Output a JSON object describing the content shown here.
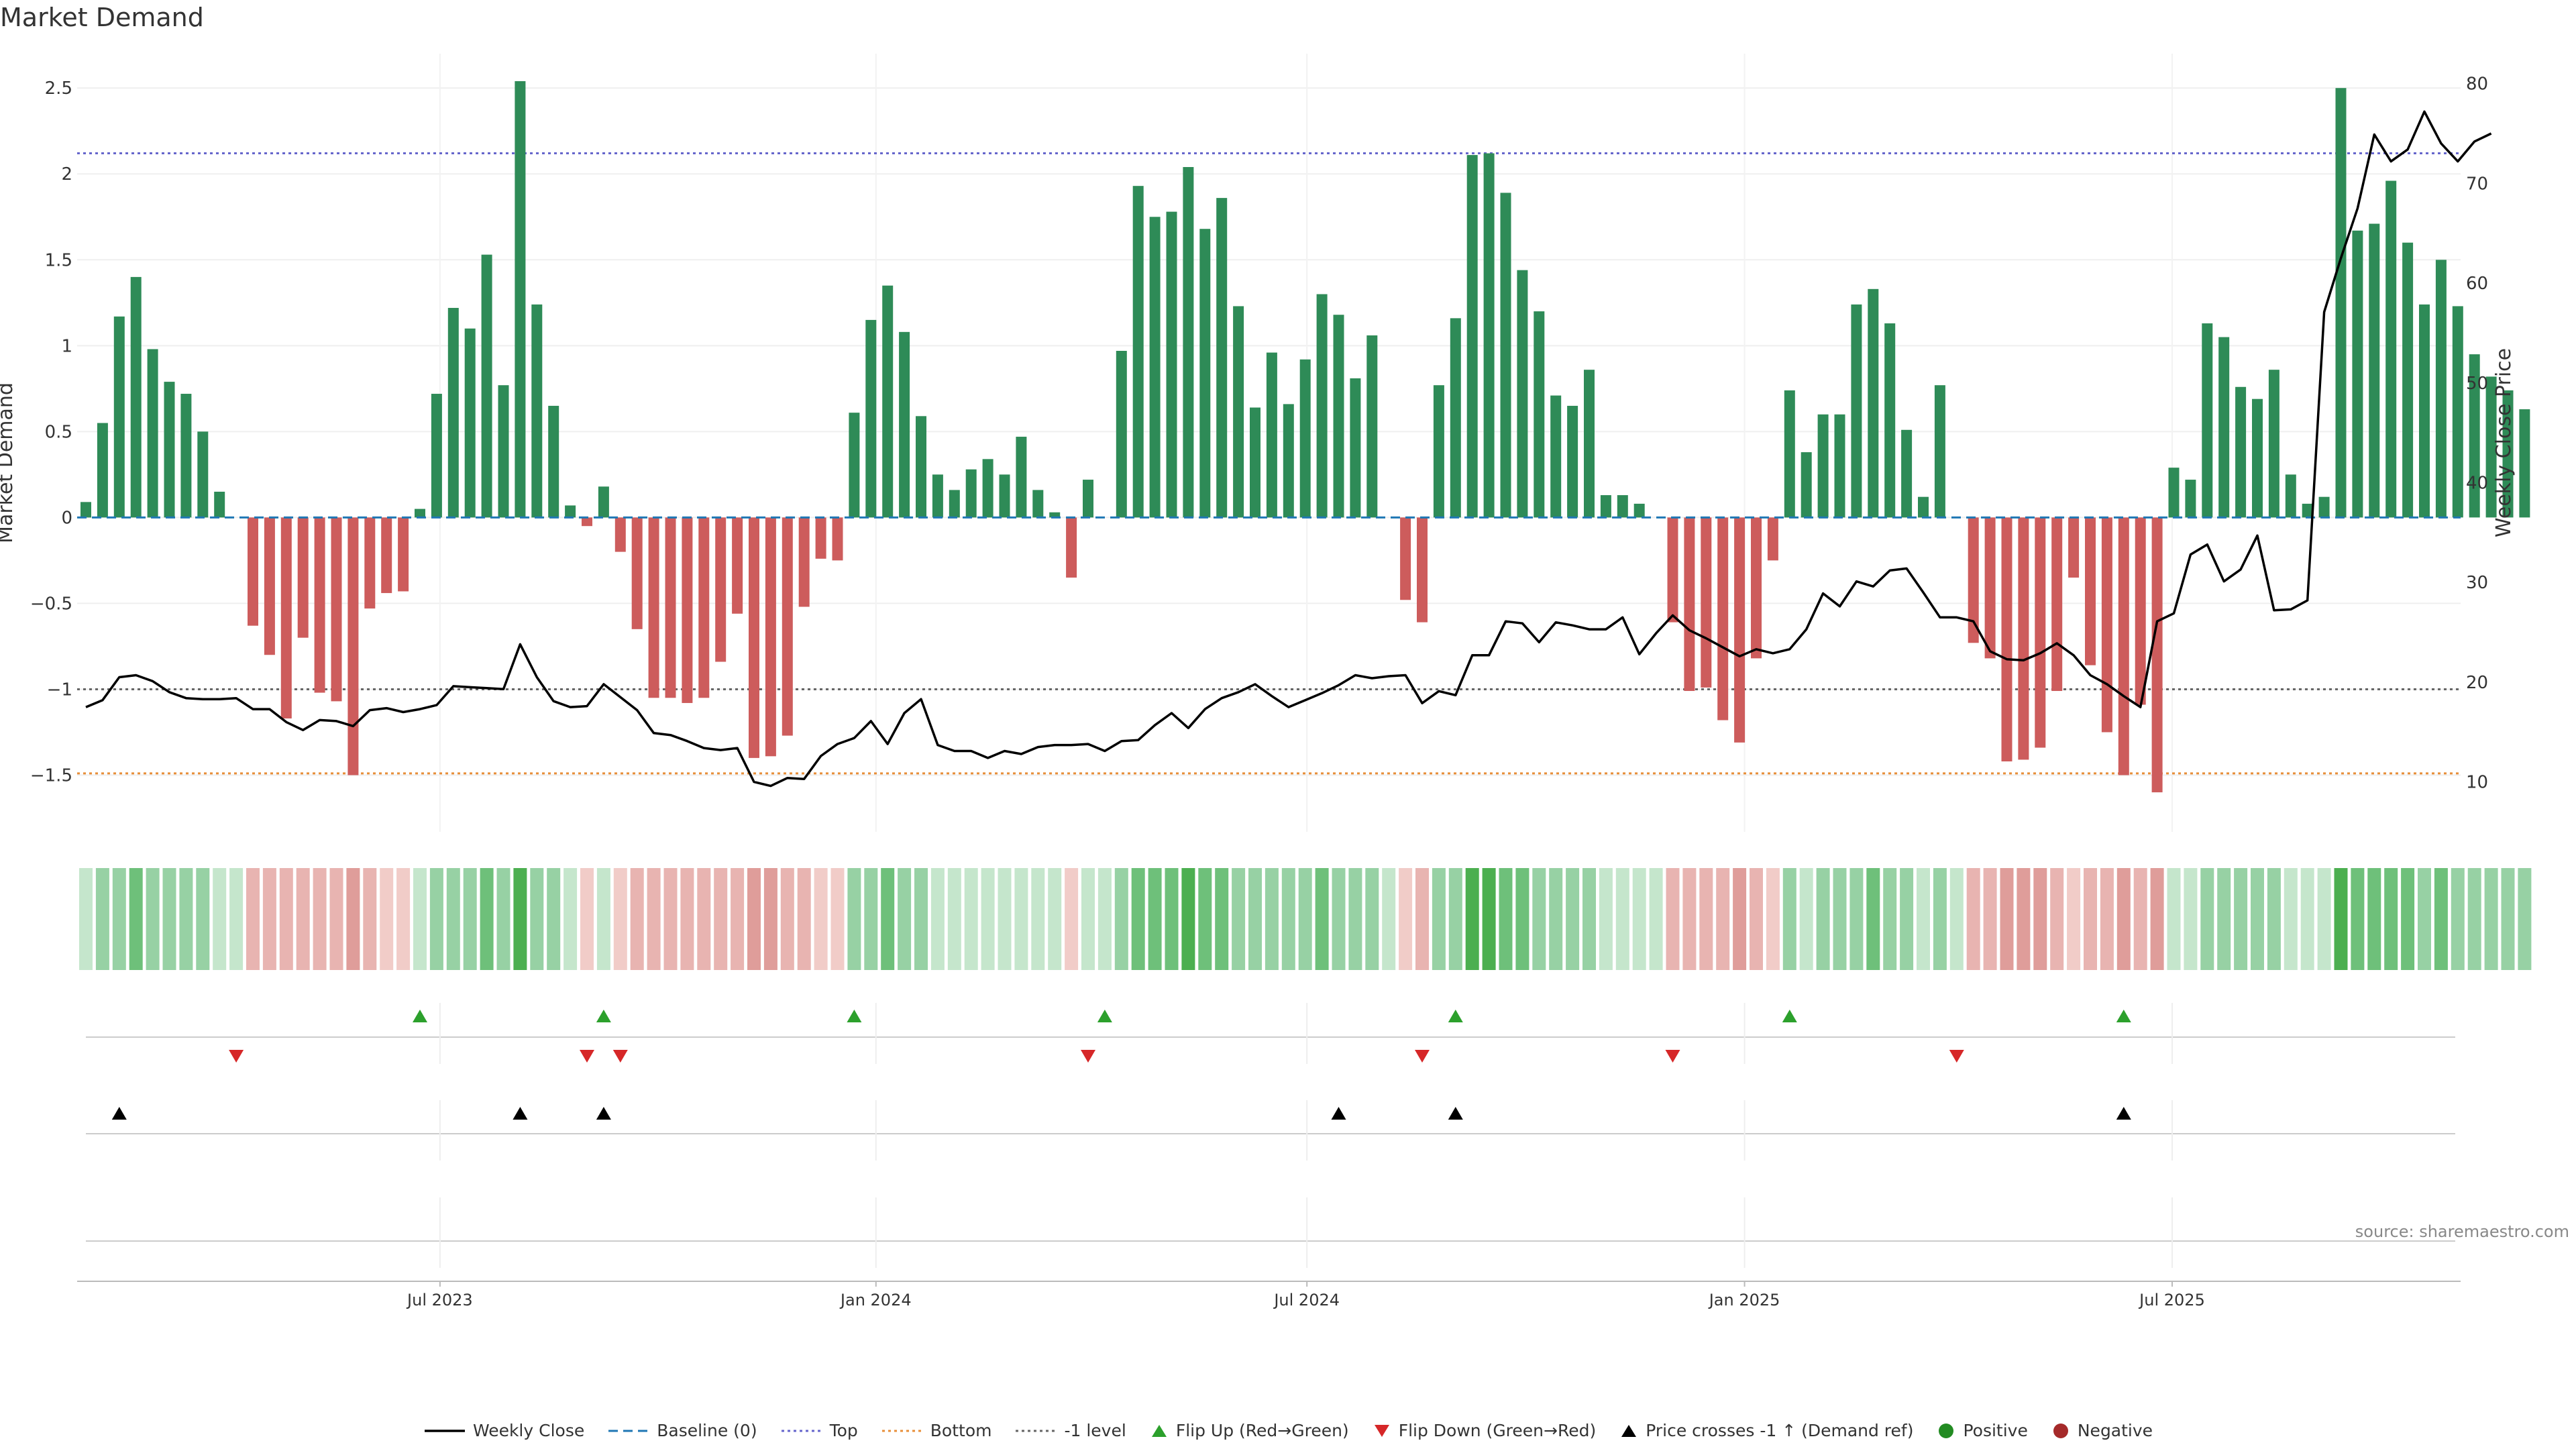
{
  "chart_data": {
    "type": "bar",
    "title": "Market Demand",
    "ylabel_left": "Market Demand",
    "ylabel_right": "Weekly Close Price",
    "source": "source: sharemaestro.com",
    "left_axis": {
      "ylim": [
        -1.83,
        2.7
      ],
      "ticks": [
        -1.5,
        -1,
        -0.5,
        0,
        0.5,
        1,
        1.5,
        2,
        2.5
      ],
      "tick_labels": [
        "−1.5",
        "−1",
        "−0.5",
        "0",
        "0.5",
        "1",
        "1.5",
        "2",
        "2.5"
      ]
    },
    "right_axis": {
      "ylim": [
        5,
        83
      ],
      "ticks": [
        10,
        20,
        30,
        40,
        50,
        60,
        70,
        80
      ],
      "tick_labels": [
        "10",
        "20",
        "30",
        "40",
        "50",
        "60",
        "70",
        "80"
      ]
    },
    "x_ticks": [
      {
        "label": "Jul 2023",
        "index": 21.2
      },
      {
        "label": "Jan 2024",
        "index": 47.3
      },
      {
        "label": "Jul 2024",
        "index": 73.1
      },
      {
        "label": "Jan 2025",
        "index": 99.3
      },
      {
        "label": "Jul 2025",
        "index": 124.9
      }
    ],
    "reference_lines": {
      "top": 2.12,
      "bottom": -1.49,
      "minus_one": -1.0,
      "baseline": 0
    },
    "demand": [
      0.09,
      0.55,
      1.17,
      1.4,
      0.98,
      0.79,
      0.72,
      0.5,
      0.15,
      0,
      -0.63,
      -0.8,
      -1.17,
      -0.7,
      -1.02,
      -1.07,
      -1.5,
      -0.53,
      -0.44,
      -0.43,
      0.05,
      0.72,
      1.22,
      1.1,
      1.53,
      0.77,
      2.54,
      1.24,
      0.65,
      0.07,
      -0.05,
      0.18,
      -0.2,
      -0.65,
      -1.05,
      -1.05,
      -1.08,
      -1.05,
      -0.84,
      -0.56,
      -1.4,
      -1.39,
      -1.27,
      -0.52,
      -0.24,
      -0.25,
      0.61,
      1.15,
      1.35,
      1.08,
      0.59,
      0.25,
      0.16,
      0.28,
      0.34,
      0.25,
      0.47,
      0.16,
      0.03,
      -0.35,
      0.22,
      0,
      0.97,
      1.93,
      1.75,
      1.78,
      2.04,
      1.68,
      1.86,
      1.23,
      0.64,
      0.96,
      0.66,
      0.92,
      1.3,
      1.18,
      0.81,
      1.06,
      0,
      -0.48,
      -0.61,
      0.77,
      1.16,
      2.11,
      2.12,
      1.89,
      1.44,
      1.2,
      0.71,
      0.65,
      0.86,
      0.13,
      0.13,
      0.08,
      0,
      -0.61,
      -1.01,
      -0.99,
      -1.18,
      -1.31,
      -0.82,
      -0.25,
      0.74,
      0.38,
      0.6,
      0.6,
      1.24,
      1.33,
      1.13,
      0.51,
      0.12,
      0.77,
      0,
      -0.73,
      -0.82,
      -1.42,
      -1.41,
      -1.34,
      -1.01,
      -0.35,
      -0.86,
      -1.25,
      -1.5,
      -1.09,
      -1.6,
      0.29,
      0.22,
      1.13,
      1.05,
      0.76,
      0.69,
      0.86,
      0.25,
      0.08,
      0.12,
      2.5,
      1.67,
      1.71,
      1.96,
      1.6,
      1.24,
      1.5,
      1.23,
      0.95,
      0.82,
      0.74,
      0.63
    ],
    "weekly_close": [
      17.5,
      18.2,
      20.5,
      20.7,
      20.1,
      19,
      18.4,
      18.3,
      18.3,
      18.4,
      17.3,
      17.3,
      16,
      15.2,
      16.2,
      16.1,
      15.6,
      17.2,
      17.4,
      17,
      17.3,
      17.7,
      19.6,
      19.5,
      19.4,
      19.3,
      23.8,
      20.5,
      18.1,
      17.5,
      17.6,
      19.8,
      18.5,
      17.2,
      14.9,
      14.7,
      14.1,
      13.4,
      13.2,
      13.4,
      10,
      9.6,
      10.4,
      10.3,
      12.6,
      13.8,
      14.4,
      16.1,
      13.8,
      16.9,
      18.3,
      13.7,
      13.1,
      13.1,
      12.4,
      13.1,
      12.8,
      13.5,
      13.7,
      13.7,
      13.8,
      13.1,
      14.1,
      14.2,
      15.7,
      16.9,
      15.4,
      17.3,
      18.4,
      19,
      19.8,
      18.6,
      17.5,
      18.2,
      18.9,
      19.7,
      20.7,
      20.4,
      20.6,
      20.7,
      17.9,
      19.1,
      18.7,
      22.7,
      22.7,
      26.1,
      25.9,
      24,
      26,
      25.7,
      25.3,
      25.3,
      26.5,
      22.8,
      24.9,
      26.7,
      25.2,
      24.4,
      23.5,
      22.6,
      23.3,
      22.9,
      23.3,
      25.3,
      28.9,
      27.6,
      30.1,
      29.6,
      31.2,
      31.4,
      29,
      26.5,
      26.5,
      26.1,
      23.1,
      22.3,
      22.2,
      22.9,
      23.9,
      22.7,
      20.7,
      19.8,
      18.6,
      17.5,
      26.1,
      26.9,
      32.8,
      33.8,
      30.1,
      31.3,
      34.7,
      27.2,
      27.3,
      28.2,
      57.1,
      62.5,
      67.5,
      74.9,
      72.2,
      73.4,
      77.2,
      74,
      72.2,
      74.2,
      75
    ]
  },
  "heat_strip": {
    "colors": {
      "pos_3": "#4caf50",
      "pos_2": "#6ec07a",
      "pos_1": "#97d1a4",
      "pos_0": "#c5e6cc",
      "neg_0": "#f1ccc8",
      "neg_1": "#e8b4b1",
      "neg_2": "#df9d9a",
      "neg_3": "#d88a87"
    }
  },
  "markers": {
    "flip_up": [
      20,
      31,
      46,
      61,
      82,
      102,
      122
    ],
    "flip_down": [
      9,
      30,
      32,
      60,
      80,
      95,
      112
    ],
    "price_cross": [
      2,
      26,
      31,
      75,
      82,
      122
    ]
  },
  "colors": {
    "positive_bar": "#2e8b57",
    "negative_bar": "#cd5c5c",
    "weekly_close": "#000000",
    "baseline": "#1f77b4",
    "top": "#6666cc",
    "bottom": "#e88f3a",
    "minus_one": "#666666",
    "flip_up": "#2ca02c",
    "flip_down": "#d62728",
    "price_cross": "#000000",
    "positive_dot": "#228b22",
    "negative_dot": "#a52a2a"
  },
  "legend": [
    {
      "key": "weekly_close",
      "label": "Weekly Close",
      "style": "line"
    },
    {
      "key": "baseline",
      "label": "Baseline (0)",
      "style": "dash"
    },
    {
      "key": "top",
      "label": "Top",
      "style": "dot"
    },
    {
      "key": "bottom",
      "label": "Bottom",
      "style": "dot"
    },
    {
      "key": "minus_one",
      "label": "-1 level",
      "style": "dot"
    },
    {
      "key": "flip_up",
      "label": "Flip Up (Red→Green)",
      "style": "tri-up"
    },
    {
      "key": "flip_down",
      "label": "Flip Down (Green→Red)",
      "style": "tri-down"
    },
    {
      "key": "price_cross",
      "label": "Price crosses -1 ↑ (Demand ref)",
      "style": "tri-up"
    },
    {
      "key": "positive_dot",
      "label": "Positive",
      "style": "circle"
    },
    {
      "key": "negative_dot",
      "label": "Negative",
      "style": "circle"
    }
  ]
}
